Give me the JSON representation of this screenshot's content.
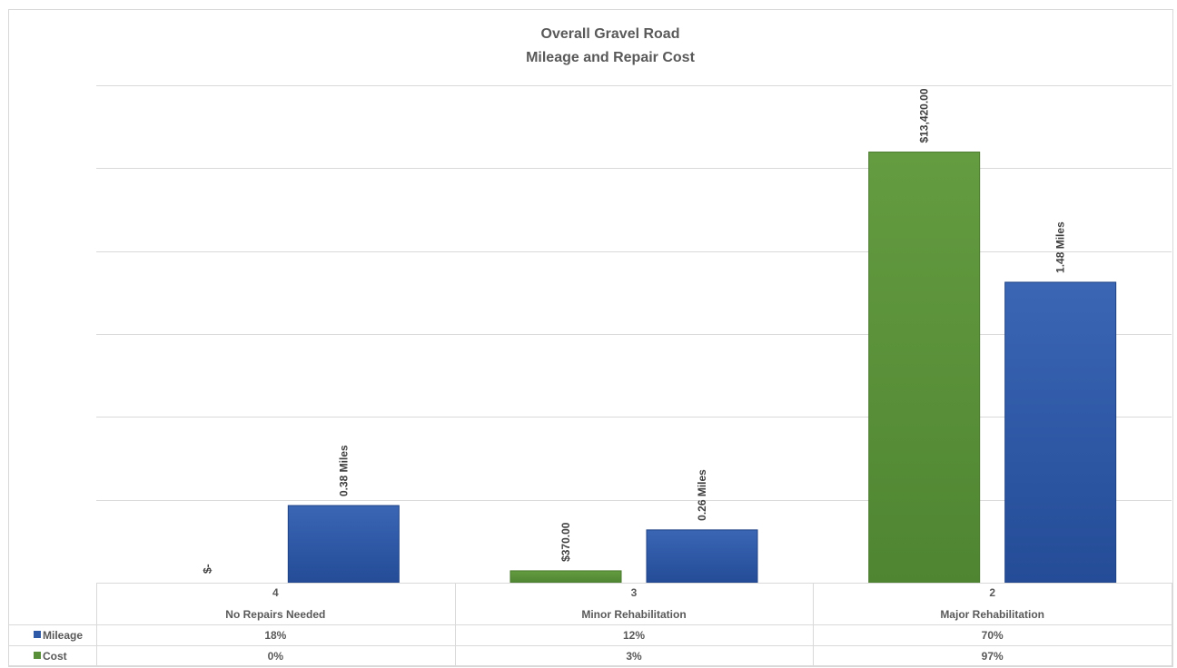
{
  "chart_data": {
    "type": "bar",
    "title": "Overall Gravel Road",
    "subtitle": "Mileage and Repair Cost",
    "categories": [
      {
        "code": "4",
        "label": "No Repairs Needed"
      },
      {
        "code": "3",
        "label": "Minor Rehabilitation"
      },
      {
        "code": "2",
        "label": "Major Rehabilitation"
      }
    ],
    "series": [
      {
        "name": "Cost",
        "color": "#5a8f3a",
        "values": [
          0,
          370,
          13420
        ],
        "data_labels": [
          "$-",
          "$370.00",
          "$13,420.00"
        ],
        "table_values": [
          "0%",
          "3%",
          "97%"
        ]
      },
      {
        "name": "Mileage",
        "color": "#2f5aa8",
        "values": [
          0.38,
          0.26,
          1.48
        ],
        "data_labels": [
          "0.38 Miles",
          "0.26 Miles",
          "1.48 Miles"
        ],
        "table_values": [
          "18%",
          "12%",
          "70%"
        ]
      }
    ],
    "table_row_order": [
      "Mileage",
      "Cost"
    ],
    "cost_axis": {
      "min": 0,
      "max": 15500
    },
    "mileage_axis": {
      "min": 0,
      "max": 2.45
    },
    "gridlines": true,
    "axis_labels_shown": false,
    "data_table": true,
    "legend": "data-table"
  }
}
